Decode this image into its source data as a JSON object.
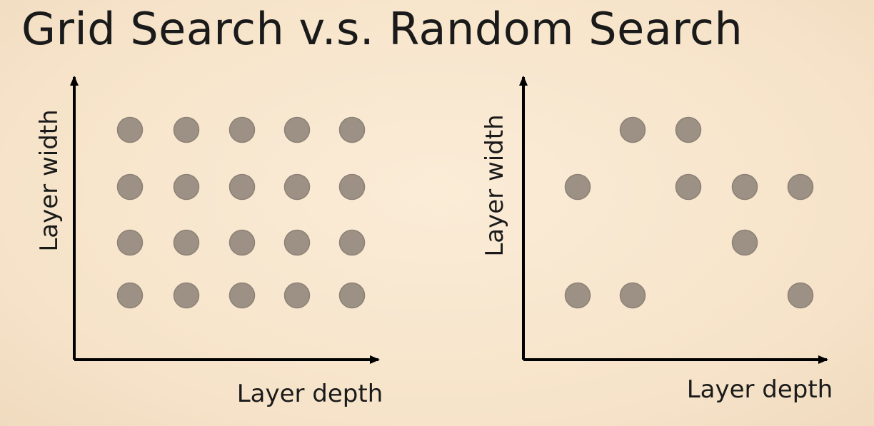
{
  "title": "Grid Search v.s. Random Search",
  "panels": [
    {
      "name": "grid",
      "x_label": "Layer depth",
      "y_label": "Layer width",
      "points": [
        [
          1,
          4
        ],
        [
          2,
          4
        ],
        [
          3,
          4
        ],
        [
          4,
          4
        ],
        [
          5,
          4
        ],
        [
          1,
          3
        ],
        [
          2,
          3
        ],
        [
          3,
          3
        ],
        [
          4,
          3
        ],
        [
          5,
          3
        ],
        [
          1,
          2
        ],
        [
          2,
          2
        ],
        [
          3,
          2
        ],
        [
          4,
          2
        ],
        [
          5,
          2
        ],
        [
          1,
          1
        ],
        [
          2,
          1
        ],
        [
          3,
          1
        ],
        [
          4,
          1
        ],
        [
          5,
          1
        ]
      ]
    },
    {
      "name": "random",
      "x_label": "Layer depth",
      "y_label": "Layer width",
      "points": [
        [
          2,
          4
        ],
        [
          3,
          4
        ],
        [
          1,
          3
        ],
        [
          3,
          3
        ],
        [
          4,
          3
        ],
        [
          5,
          3
        ],
        [
          4,
          2
        ],
        [
          1,
          1
        ],
        [
          2,
          1
        ],
        [
          5,
          1
        ]
      ]
    }
  ],
  "colors": {
    "background": "#f7e6cf",
    "dot": "#9c9184",
    "axis": "#000000"
  }
}
